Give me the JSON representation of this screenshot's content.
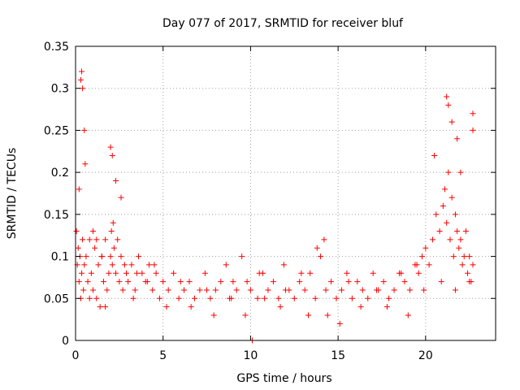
{
  "chart_data": {
    "type": "scatter",
    "title": "Day 077 of 2017, SRMTID for receiver bluf",
    "xlabel": "GPS time / hours",
    "ylabel": "SRMTID / TECUs",
    "xlim": [
      0,
      24
    ],
    "ylim": [
      0,
      0.35
    ],
    "xticks": [
      "0",
      "5",
      "10",
      "15",
      "20"
    ],
    "xtick_values": [
      0,
      5,
      10,
      15,
      20
    ],
    "yticks": [
      "0",
      "0.05",
      "0.1",
      "0.15",
      "0.2",
      "0.25",
      "0.3",
      "0.35"
    ],
    "ytick_values": [
      0,
      0.05,
      0.1,
      0.15,
      0.2,
      0.25,
      0.3,
      0.35
    ],
    "grid": true,
    "marker": "plus",
    "colors": {
      "points": "#ff0000",
      "grid": "#a0a0a0"
    },
    "series": [
      {
        "x": [
          0.05,
          0.1,
          0.15,
          0.2,
          0.25,
          0.3,
          0.35,
          0.4,
          0.45,
          0.5,
          0.6,
          0.7,
          0.8,
          0.9,
          1.0,
          1.1,
          1.2,
          1.3,
          1.4,
          1.5,
          1.6,
          1.7,
          1.8,
          1.9,
          2.0,
          2.05,
          2.1,
          2.15,
          2.2,
          2.3,
          2.4,
          2.5,
          2.6,
          2.7,
          2.8,
          2.9,
          3.0,
          3.2,
          3.4,
          3.6,
          3.8,
          4.0,
          4.2,
          4.4,
          4.6,
          4.8,
          5.0,
          5.3,
          5.6,
          5.9,
          6.2,
          6.5,
          6.8,
          7.1,
          7.4,
          7.7,
          8.0,
          8.3,
          8.6,
          8.9,
          9.2,
          9.5,
          9.8,
          10.0,
          10.1,
          10.4,
          10.7,
          11.0,
          11.3,
          11.6,
          11.9,
          12.2,
          12.5,
          12.8,
          13.1,
          13.4,
          13.7,
          14.0,
          14.3,
          14.6,
          14.9,
          15.2,
          15.5,
          15.8,
          16.1,
          16.4,
          16.7,
          17.0,
          17.3,
          17.6,
          17.9,
          18.2,
          18.5,
          18.8,
          19.1,
          19.4,
          19.6,
          19.8,
          20.0,
          20.2,
          20.4,
          20.6,
          20.8,
          21.0,
          21.1,
          21.2,
          21.3,
          21.4,
          21.5,
          21.6,
          21.7,
          21.8,
          21.9,
          22.0,
          22.1,
          22.2,
          22.3,
          22.4,
          22.5,
          22.6,
          22.7,
          0.3,
          0.35,
          0.4,
          0.5,
          0.55,
          1.0,
          1.2,
          1.5,
          2.0,
          2.1,
          2.3,
          3.5,
          4.5,
          6.0,
          7.5,
          9.0,
          10.5,
          12.0,
          13.8,
          14.2,
          15.6,
          17.2,
          18.6,
          19.5,
          20.5,
          21.2,
          21.3,
          21.5,
          21.8,
          22.0,
          22.7,
          22.7,
          0.2,
          0.8,
          1.7,
          2.6,
          3.3,
          4.1,
          5.2,
          6.6,
          7.9,
          8.8,
          9.7,
          10.8,
          11.7,
          12.9,
          13.3,
          14.4,
          15.1,
          16.3,
          17.8,
          19.0,
          19.9,
          20.9,
          21.7,
          22.5
        ],
        "y": [
          0.13,
          0.09,
          0.11,
          0.07,
          0.1,
          0.05,
          0.08,
          0.12,
          0.06,
          0.09,
          0.1,
          0.07,
          0.12,
          0.08,
          0.06,
          0.11,
          0.05,
          0.09,
          0.04,
          0.1,
          0.07,
          0.12,
          0.06,
          0.08,
          0.1,
          0.13,
          0.09,
          0.14,
          0.11,
          0.08,
          0.12,
          0.07,
          0.1,
          0.06,
          0.09,
          0.08,
          0.07,
          0.09,
          0.06,
          0.1,
          0.08,
          0.07,
          0.09,
          0.06,
          0.08,
          0.05,
          0.07,
          0.06,
          0.08,
          0.05,
          0.06,
          0.07,
          0.05,
          0.06,
          0.08,
          0.05,
          0.06,
          0.07,
          0.09,
          0.05,
          0.06,
          0.1,
          0.07,
          0.06,
          0.0,
          0.05,
          0.08,
          0.06,
          0.07,
          0.05,
          0.09,
          0.06,
          0.05,
          0.07,
          0.06,
          0.08,
          0.05,
          0.1,
          0.06,
          0.07,
          0.05,
          0.06,
          0.08,
          0.05,
          0.07,
          0.06,
          0.05,
          0.08,
          0.06,
          0.07,
          0.05,
          0.06,
          0.08,
          0.07,
          0.06,
          0.09,
          0.08,
          0.1,
          0.11,
          0.09,
          0.12,
          0.15,
          0.13,
          0.16,
          0.18,
          0.14,
          0.2,
          0.12,
          0.17,
          0.1,
          0.15,
          0.13,
          0.11,
          0.12,
          0.09,
          0.1,
          0.13,
          0.08,
          0.1,
          0.07,
          0.09,
          0.31,
          0.32,
          0.3,
          0.25,
          0.21,
          0.13,
          0.12,
          0.1,
          0.23,
          0.22,
          0.19,
          0.08,
          0.09,
          0.07,
          0.06,
          0.07,
          0.08,
          0.06,
          0.11,
          0.12,
          0.07,
          0.06,
          0.08,
          0.09,
          0.22,
          0.29,
          0.28,
          0.26,
          0.24,
          0.2,
          0.27,
          0.25,
          0.18,
          0.05,
          0.04,
          0.17,
          0.05,
          0.07,
          0.04,
          0.04,
          0.03,
          0.05,
          0.03,
          0.05,
          0.04,
          0.08,
          0.03,
          0.03,
          0.02,
          0.04,
          0.04,
          0.03,
          0.06,
          0.07,
          0.06,
          0.07
        ]
      }
    ]
  }
}
